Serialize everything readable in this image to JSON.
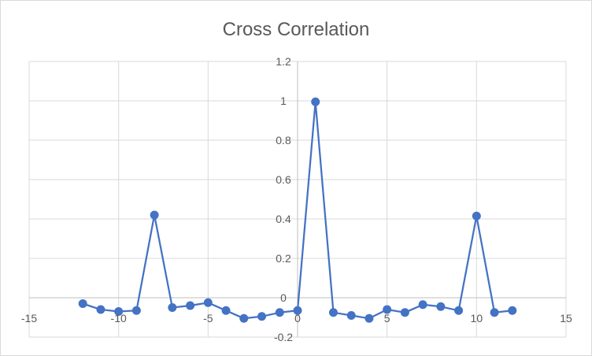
{
  "chart_data": {
    "type": "scatter",
    "title": "Cross Correlation",
    "xlabel": "",
    "ylabel": "",
    "xlim": [
      -15,
      15
    ],
    "ylim": [
      -0.2,
      1.2
    ],
    "x_ticks": [
      -15,
      -10,
      -5,
      0,
      5,
      10,
      15
    ],
    "x_tick_labels": [
      "-15",
      "-10",
      "-5",
      "0",
      "5",
      "10",
      "15"
    ],
    "y_ticks": [
      -0.2,
      0,
      0.2,
      0.4,
      0.6,
      0.8,
      1,
      1.2
    ],
    "y_tick_labels": [
      "-0.2",
      "0",
      "0.2",
      "0.4",
      "0.6",
      "0.8",
      "1",
      "1.2"
    ],
    "grid": true,
    "legend": "none",
    "markers": true,
    "lines": true,
    "series": [
      {
        "color": "#4472C4",
        "x": [
          -12,
          -11,
          -10,
          -9,
          -8,
          -7,
          -6,
          -5,
          -4,
          -3,
          -2,
          -1,
          0,
          1,
          2,
          3,
          4,
          5,
          6,
          7,
          8,
          9,
          10,
          11,
          12
        ],
        "y": [
          -0.03,
          -0.06,
          -0.07,
          -0.065,
          0.42,
          -0.05,
          -0.04,
          -0.025,
          -0.065,
          -0.105,
          -0.095,
          -0.075,
          -0.065,
          0.995,
          -0.075,
          -0.09,
          -0.105,
          -0.06,
          -0.075,
          -0.035,
          -0.045,
          -0.065,
          0.415,
          -0.075,
          -0.065
        ]
      }
    ]
  }
}
